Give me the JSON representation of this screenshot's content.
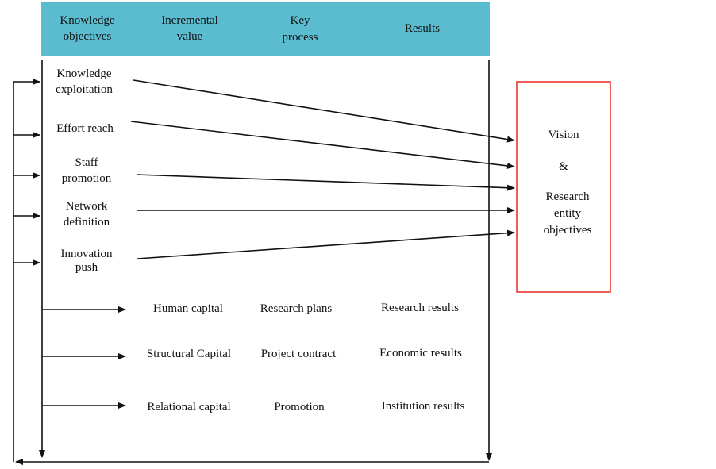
{
  "header": {
    "color": "#5bbcd0",
    "columns": [
      [
        "Knowledge",
        "objectives"
      ],
      [
        "Incremental",
        "value"
      ],
      [
        "Key",
        "process"
      ],
      [
        "Results"
      ]
    ]
  },
  "objectives": [
    [
      "Knowledge",
      "exploitation"
    ],
    [
      "Effort reach"
    ],
    [
      "Staff",
      "promotion"
    ],
    [
      "Network",
      "definition"
    ],
    [
      "Innovation",
      "push"
    ]
  ],
  "rows": [
    {
      "value": "Human capital",
      "process": "Research plans",
      "result": "Research results"
    },
    {
      "value": "Structural Capital",
      "process": "Project contract",
      "result": "Economic results"
    },
    {
      "value": "Relational capital",
      "process": "Promotion",
      "result": "Institution results"
    }
  ],
  "target_box": {
    "border_color": "#e8372c",
    "lines": [
      "Vision",
      "&",
      "Research",
      "entity",
      "objectives"
    ]
  }
}
